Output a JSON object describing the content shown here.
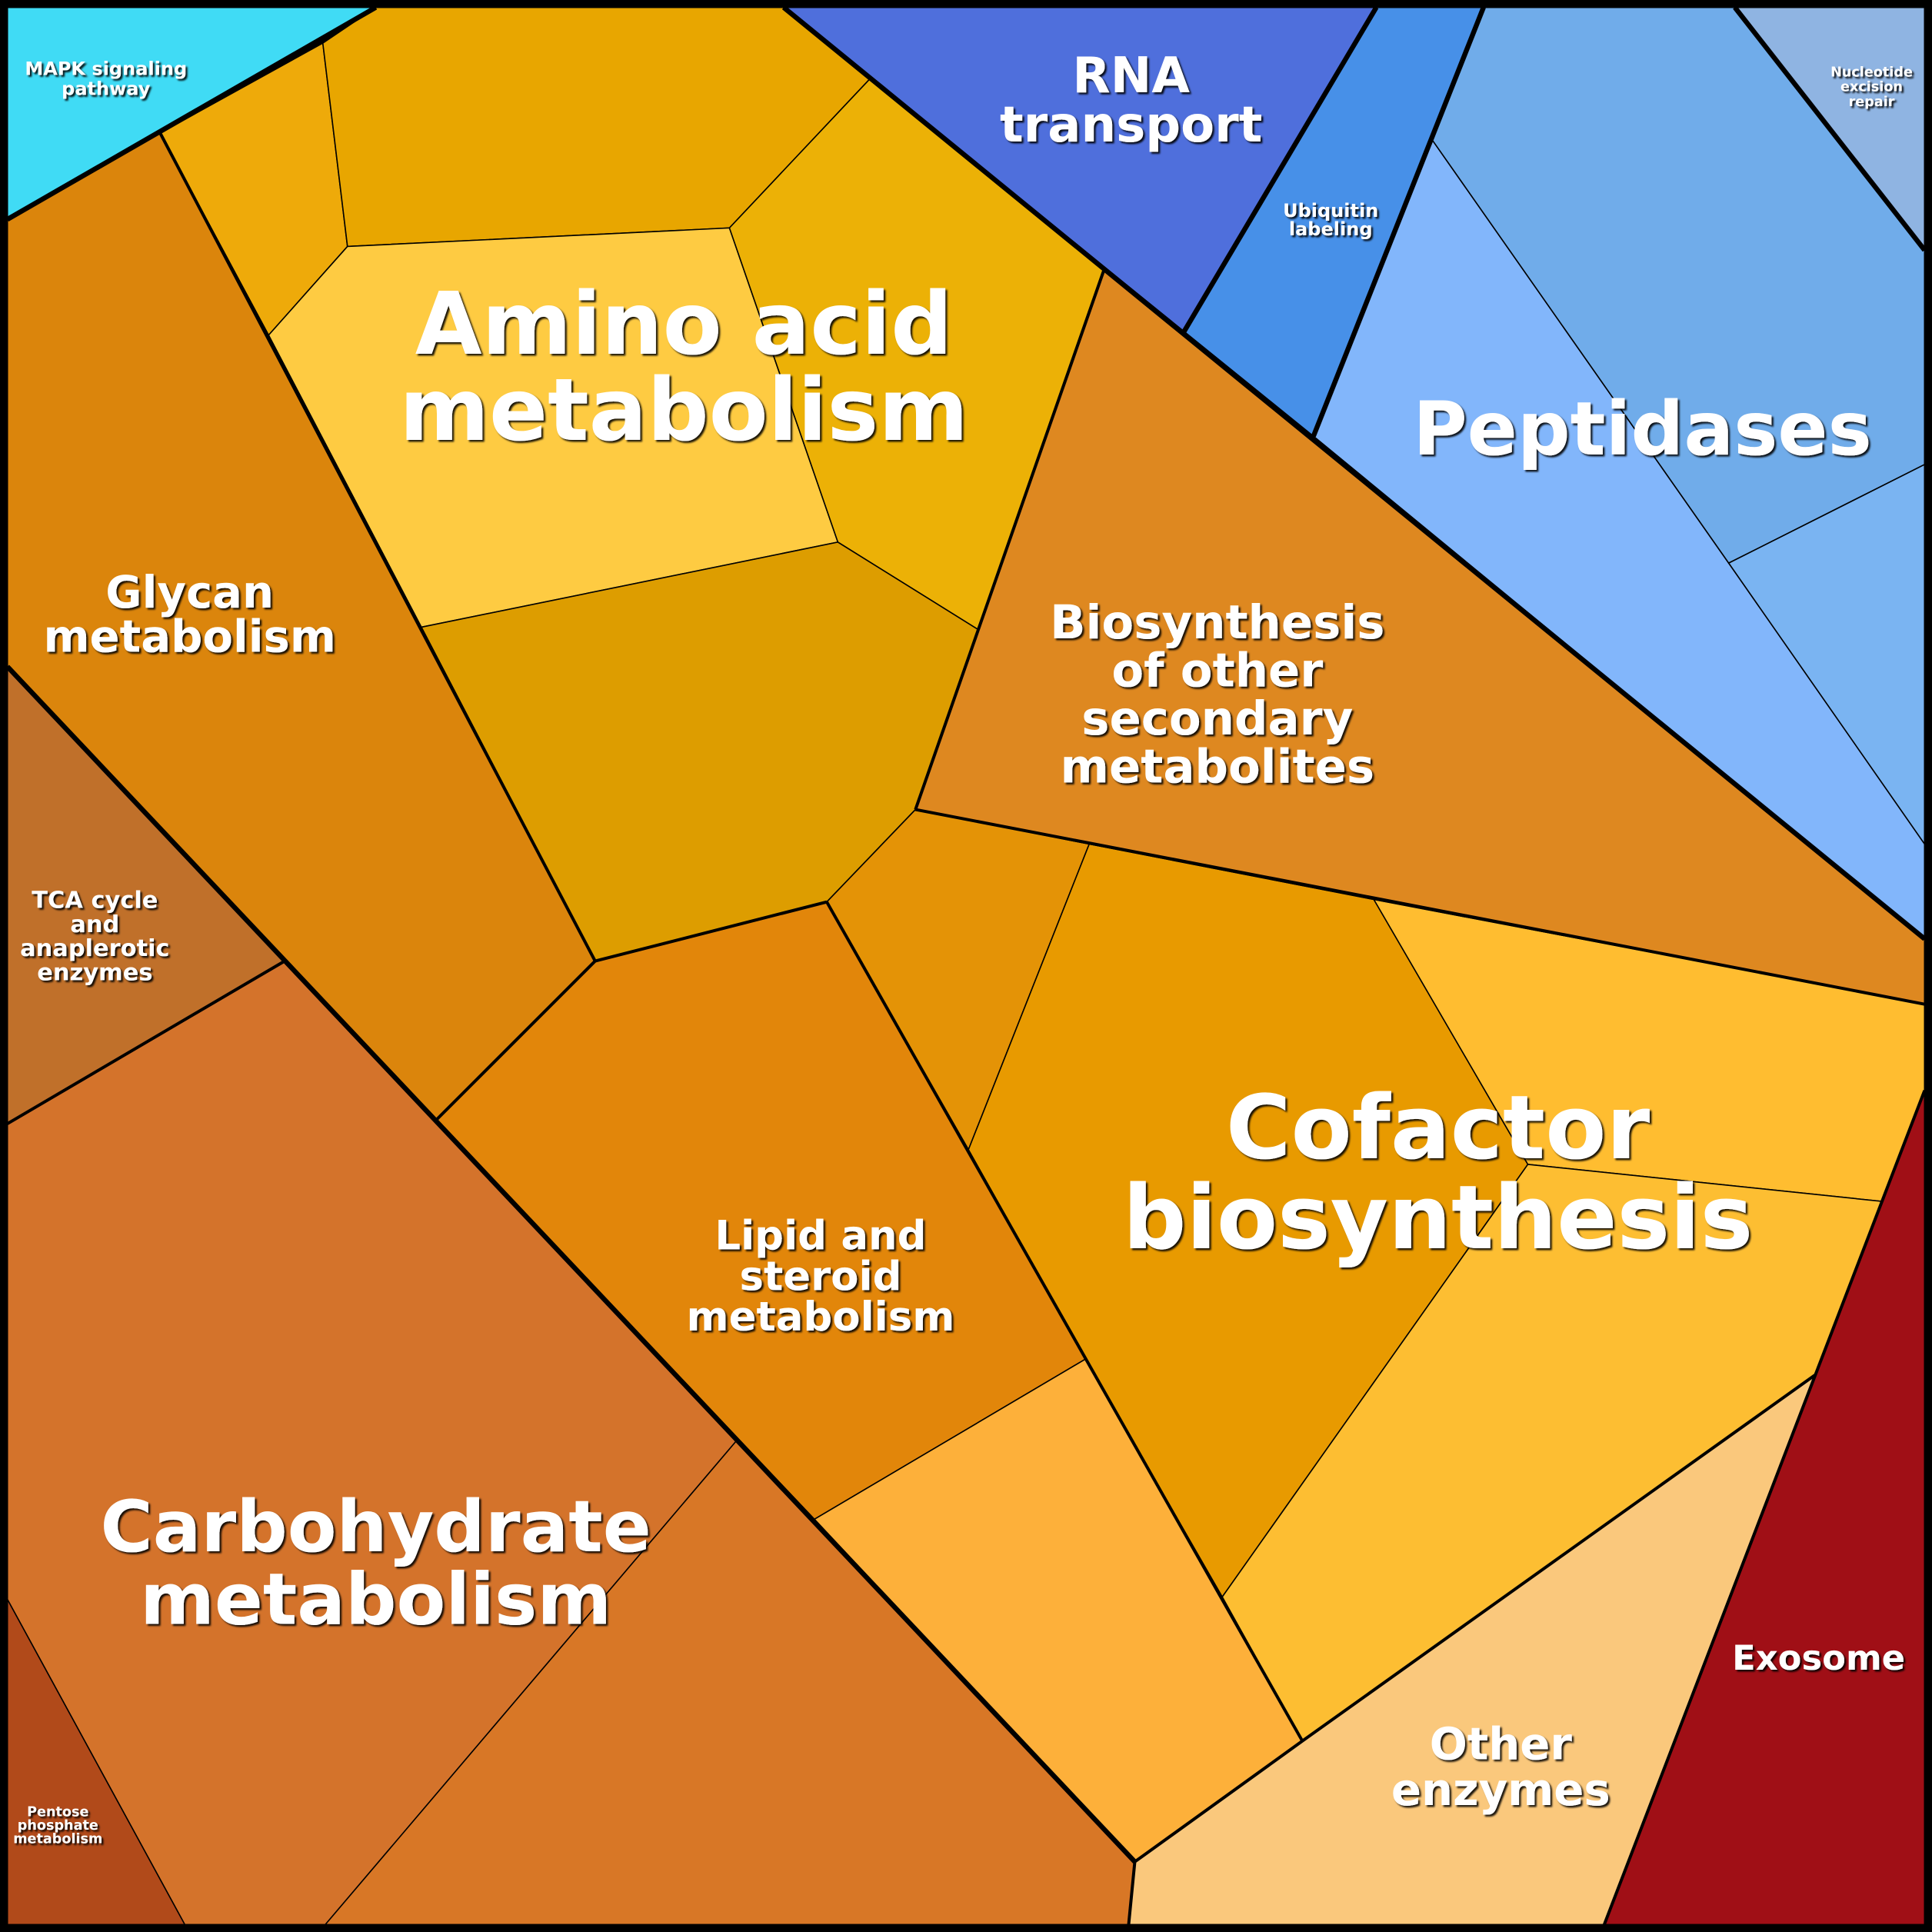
{
  "labels": {
    "mapk": [
      "MAPK signaling",
      "pathway"
    ],
    "rna_transport": [
      "RNA",
      "transport"
    ],
    "ubiquitin": [
      "Ubiquitin",
      "labeling"
    ],
    "nucleotide": [
      "Nucleotide",
      "excision",
      "repair"
    ],
    "amino_acid": [
      "Amino acid",
      "metabolism"
    ],
    "peptidases": [
      "Peptidases"
    ],
    "glycan": [
      "Glycan",
      "metabolism"
    ],
    "biosynthesis": [
      "Biosynthesis",
      "of other",
      "secondary",
      "metabolites"
    ],
    "tca": [
      "TCA cycle",
      "and",
      "anaplerotic",
      "enzymes"
    ],
    "lipid": [
      "Lipid and",
      "steroid",
      "metabolism"
    ],
    "cofactor": [
      "Cofactor",
      "biosynthesis"
    ],
    "carbohydrate": [
      "Carbohydrate",
      "metabolism"
    ],
    "pentose": [
      "Pentose",
      "phosphate",
      "metabolism"
    ],
    "other_enzymes": [
      "Other",
      "enzymes"
    ],
    "exosome": [
      "Exosome"
    ]
  },
  "colors": {
    "mapk": "#40dbf5",
    "rna_transport": "#4f6fdc",
    "ubiquitin": "#4790e8",
    "nucleotide": "#8fb4e2",
    "peptidases": [
      "#82b6fb",
      "#70acea",
      "#7ab4f2"
    ],
    "amino_acid": [
      "#eeaa0a",
      "#e8a600",
      "#fecb42",
      "#ecb106",
      "#dd9d00"
    ],
    "glycan": "#db850c",
    "tca": "#c0702a",
    "carbohydrate": [
      "#d4732b",
      "#d87726"
    ],
    "pentose": "#b14a1a",
    "lipid": [
      "#e2860a",
      "#fdb03a"
    ],
    "cofactor": [
      "#e49306",
      "#e89a00",
      "#ffbd30",
      "#fdbe32"
    ],
    "biosynthesis": "#de8820",
    "other_enzymes": "#fac87c",
    "exosome": "#a00f16",
    "border": "#000000"
  }
}
